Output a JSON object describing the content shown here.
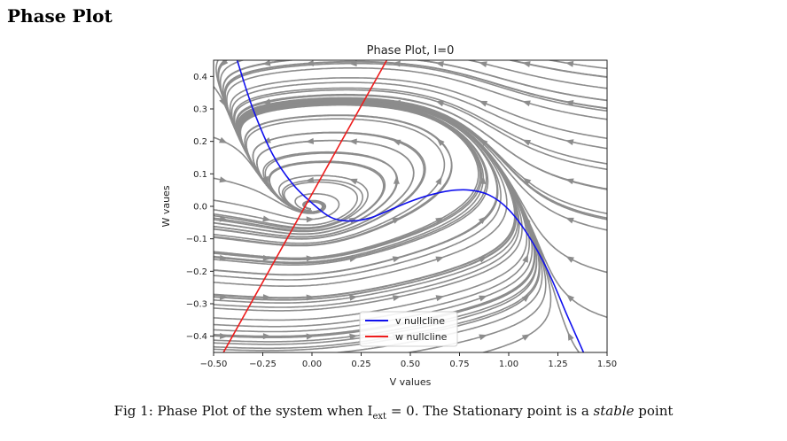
{
  "page": {
    "heading": "Phase Plot",
    "caption": {
      "prefix": "Fig 1: Phase Plot of the system when I",
      "subscript": "ext",
      "middle": " = 0. The Stationary point is a ",
      "emphasis": "stable",
      "suffix": " point"
    }
  },
  "chart_data": {
    "type": "line",
    "title": "Phase Plot, I=0",
    "xlabel": "V values",
    "ylabel": "W vaues",
    "xlim": [
      -0.5,
      1.5
    ],
    "ylim": [
      -0.45,
      0.45
    ],
    "xticks": [
      "−0.50",
      "−0.25",
      "0.00",
      "0.25",
      "0.50",
      "0.75",
      "1.00",
      "1.25",
      "1.50"
    ],
    "yticks": [
      "−0.4",
      "−0.3",
      "−0.2",
      "−0.1",
      "0.0",
      "0.1",
      "0.2",
      "0.3",
      "0.4"
    ],
    "grid": false,
    "legend_position": "lower-center",
    "colors": {
      "v_nullcline": "#1010ee",
      "w_nullcline": "#ee1c1c",
      "streamlines": "#8c8c8c"
    },
    "series": [
      {
        "name": "v nullcline",
        "x": [
          -0.38,
          -0.3,
          -0.2,
          -0.1,
          0.0,
          0.1,
          0.2,
          0.3,
          0.4,
          0.5,
          0.6,
          0.7,
          0.8,
          0.9,
          1.0,
          1.1,
          1.2,
          1.3,
          1.38
        ],
        "y": [
          0.45,
          0.3,
          0.16,
          0.07,
          0.01,
          -0.035,
          -0.045,
          -0.035,
          -0.01,
          0.015,
          0.035,
          0.048,
          0.05,
          0.035,
          -0.01,
          -0.09,
          -0.2,
          -0.34,
          -0.45
        ]
      },
      {
        "name": "w nullcline",
        "x": [
          -0.45,
          0.38
        ],
        "y": [
          -0.45,
          0.45
        ]
      }
    ],
    "streamlines": "gray streamlines of the phase field with arrowheads, spiraling toward the stationary point near (0.0, 0.0)"
  }
}
